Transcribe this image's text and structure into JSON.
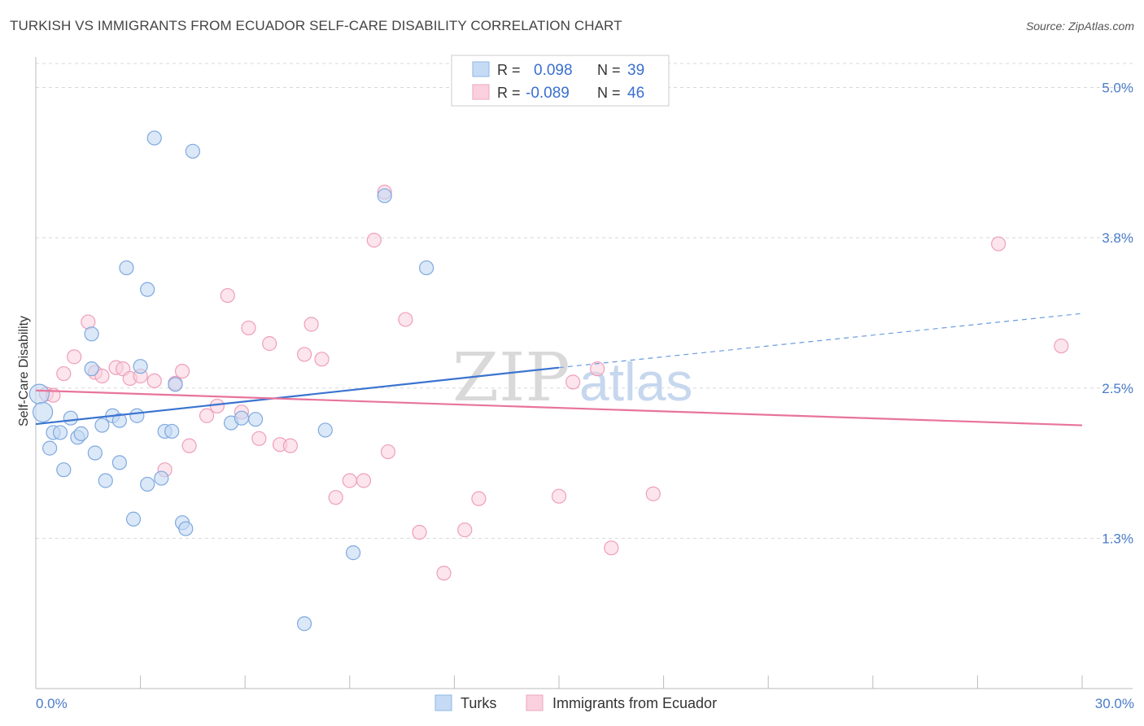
{
  "title": "TURKISH VS IMMIGRANTS FROM ECUADOR SELF-CARE DISABILITY CORRELATION CHART",
  "source": "Source: ZipAtlas.com",
  "watermark": {
    "part1": "ZIP",
    "part2": "atlas"
  },
  "colors": {
    "turks": "#9ec3ee",
    "turks_line": "#3a74d0",
    "ecuador": "#f5b3c9",
    "ecuador_line": "#e8749b",
    "accent_text": "#3a6fd0"
  },
  "legend": {
    "rows": [
      {
        "r_label": "R =",
        "r_value": "0.098",
        "n_label": "N =",
        "n_value": "39"
      },
      {
        "r_label": "R =",
        "r_value": "-0.089",
        "n_label": "N =",
        "n_value": "46"
      }
    ]
  },
  "chart_data": {
    "type": "scatter",
    "ylabel": "Self-Care Disability",
    "xlim": [
      0,
      30
    ],
    "ylim": [
      0,
      5.2
    ],
    "x_tick_labels": [
      "0.0%",
      "30.0%"
    ],
    "y_ticks": [
      1.25,
      2.5,
      3.75,
      5.0
    ],
    "y_tick_labels": [
      "1.3%",
      "2.5%",
      "3.8%",
      "5.0%"
    ],
    "legend_position": "top-center",
    "grid": "horizontal dashed",
    "series": [
      {
        "name": "Turks",
        "color": "#9ec3ee",
        "trend": {
          "x0": 0,
          "y0": 2.2,
          "x1": 15,
          "y1": 2.67,
          "dashed_to_x": 30,
          "dashed_to_y": 3.12
        },
        "points": [
          [
            0.1,
            2.45
          ],
          [
            0.2,
            2.3
          ],
          [
            0.4,
            2.0
          ],
          [
            0.5,
            2.13
          ],
          [
            0.7,
            2.13
          ],
          [
            0.8,
            1.82
          ],
          [
            1.0,
            2.25
          ],
          [
            1.2,
            2.09
          ],
          [
            1.3,
            2.12
          ],
          [
            1.6,
            2.66
          ],
          [
            1.6,
            2.95
          ],
          [
            1.7,
            1.96
          ],
          [
            1.9,
            2.19
          ],
          [
            2.0,
            1.73
          ],
          [
            2.2,
            2.27
          ],
          [
            2.4,
            2.23
          ],
          [
            2.4,
            1.88
          ],
          [
            2.6,
            3.5
          ],
          [
            2.8,
            1.41
          ],
          [
            2.9,
            2.27
          ],
          [
            3.0,
            2.68
          ],
          [
            3.2,
            3.32
          ],
          [
            3.2,
            1.7
          ],
          [
            3.4,
            4.58
          ],
          [
            3.6,
            1.75
          ],
          [
            3.7,
            2.14
          ],
          [
            3.9,
            2.14
          ],
          [
            4.0,
            2.53
          ],
          [
            4.2,
            1.38
          ],
          [
            4.3,
            1.33
          ],
          [
            4.5,
            4.47
          ],
          [
            5.6,
            2.21
          ],
          [
            5.9,
            2.25
          ],
          [
            6.3,
            2.24
          ],
          [
            7.7,
            0.54
          ],
          [
            8.3,
            2.15
          ],
          [
            9.1,
            1.13
          ],
          [
            10.0,
            4.1
          ],
          [
            11.2,
            3.5
          ]
        ]
      },
      {
        "name": "Immigrants from Ecuador",
        "color": "#f5b3c9",
        "trend": {
          "x0": 0,
          "y0": 2.48,
          "x1": 30,
          "y1": 2.19
        },
        "points": [
          [
            0.3,
            2.45
          ],
          [
            0.5,
            2.44
          ],
          [
            0.8,
            2.62
          ],
          [
            1.1,
            2.76
          ],
          [
            1.5,
            3.05
          ],
          [
            1.7,
            2.63
          ],
          [
            1.9,
            2.6
          ],
          [
            2.3,
            2.67
          ],
          [
            2.5,
            2.66
          ],
          [
            2.7,
            2.58
          ],
          [
            3.0,
            2.6
          ],
          [
            3.4,
            2.56
          ],
          [
            3.7,
            1.82
          ],
          [
            4.0,
            2.54
          ],
          [
            4.2,
            2.64
          ],
          [
            4.4,
            2.02
          ],
          [
            4.9,
            2.27
          ],
          [
            5.2,
            2.35
          ],
          [
            5.5,
            3.27
          ],
          [
            5.9,
            2.3
          ],
          [
            6.1,
            3.0
          ],
          [
            6.4,
            2.08
          ],
          [
            6.7,
            2.87
          ],
          [
            7.0,
            2.03
          ],
          [
            7.3,
            2.02
          ],
          [
            7.7,
            2.78
          ],
          [
            7.9,
            3.03
          ],
          [
            8.2,
            2.74
          ],
          [
            8.6,
            1.59
          ],
          [
            9.0,
            1.73
          ],
          [
            9.4,
            1.73
          ],
          [
            9.7,
            3.73
          ],
          [
            10.0,
            4.13
          ],
          [
            10.1,
            1.97
          ],
          [
            10.6,
            3.07
          ],
          [
            11.0,
            1.3
          ],
          [
            11.7,
            0.96
          ],
          [
            12.3,
            1.32
          ],
          [
            12.7,
            1.58
          ],
          [
            15.0,
            1.6
          ],
          [
            15.4,
            2.55
          ],
          [
            16.1,
            2.66
          ],
          [
            16.5,
            1.17
          ],
          [
            17.7,
            1.62
          ],
          [
            27.6,
            3.7
          ],
          [
            29.4,
            2.85
          ]
        ]
      }
    ]
  },
  "bottom_legend": [
    {
      "label": "Turks",
      "color": "#9ec3ee"
    },
    {
      "label": "Immigrants from Ecuador",
      "color": "#f5b3c9"
    }
  ]
}
